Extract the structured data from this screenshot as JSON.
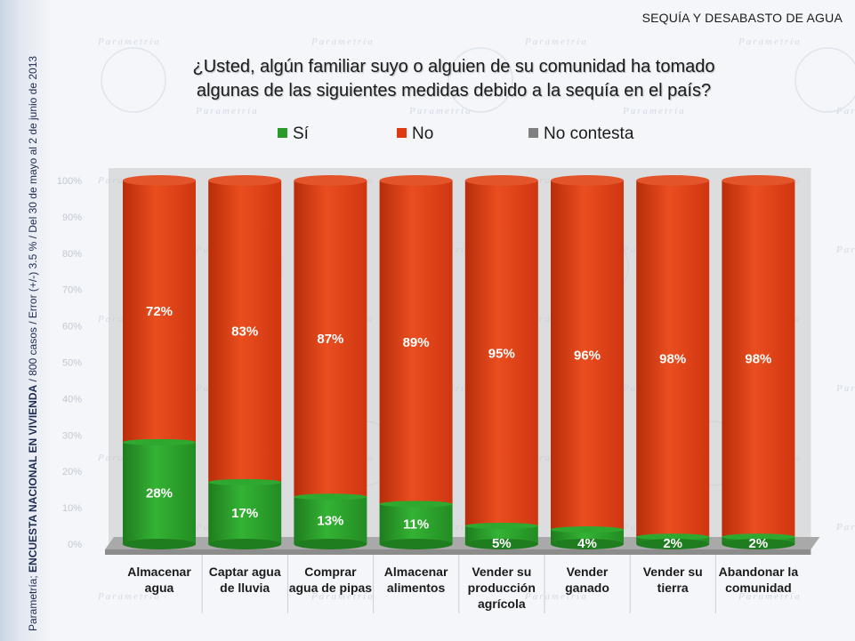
{
  "header": {
    "corner_label": "SEQUÍA Y DESABASTO DE AGUA",
    "side_note_brand": "Parametría;",
    "side_note_survey": "ENCUESTA NACIONAL EN VIVIENDA",
    "side_note_rest": "/ 800 casos / Error (+/-) 3.5 % / Del 30 de mayo al 2 de junio de 2013",
    "watermark_text": "Parametría"
  },
  "colors": {
    "si": "#2a9b2a",
    "no": "#de3b12",
    "no_contesta": "#7f7f7f"
  },
  "chart_data": {
    "type": "bar",
    "stacked": true,
    "orientation": "vertical",
    "title": "¿Usted, algún familiar suyo o alguien de su comunidad ha tomado algunas de las siguientes medidas debido a la sequía en el país?",
    "categories": [
      "Almacenar agua",
      "Captar agua de lluvia",
      "Comprar agua de pipas",
      "Almacenar alimentos",
      "Vender su producción agrícola",
      "Vender ganado",
      "Vender su tierra",
      "Abandonar la comunidad"
    ],
    "category_lines": [
      [
        "Almacenar",
        "agua"
      ],
      [
        "Captar agua",
        "de lluvia"
      ],
      [
        "Comprar",
        "agua de pipas"
      ],
      [
        "Almacenar",
        "alimentos"
      ],
      [
        "Vender su",
        "producción",
        "agrícola"
      ],
      [
        "Vender",
        "ganado"
      ],
      [
        "Vender su",
        "tierra"
      ],
      [
        "Abandonar la",
        "comunidad"
      ]
    ],
    "series": [
      {
        "name": "Sí",
        "values": [
          28,
          17,
          13,
          11,
          5,
          4,
          2,
          2
        ],
        "labels": [
          "28%",
          "17%",
          "13%",
          "11%",
          "5%",
          "4%",
          "2%",
          "2%"
        ]
      },
      {
        "name": "No",
        "values": [
          72,
          83,
          87,
          89,
          95,
          96,
          98,
          98
        ],
        "labels": [
          "72%",
          "83%",
          "87%",
          "89%",
          "95%",
          "96%",
          "98%",
          "98%"
        ]
      },
      {
        "name": "No contesta",
        "values": [
          0,
          0,
          0,
          0,
          0,
          0,
          0,
          0
        ]
      }
    ],
    "y_ticks": [
      "0%",
      "10%",
      "20%",
      "30%",
      "40%",
      "50%",
      "60%",
      "70%",
      "80%",
      "90%",
      "100%"
    ],
    "ylim": [
      0,
      100
    ],
    "legend_position": "top"
  }
}
